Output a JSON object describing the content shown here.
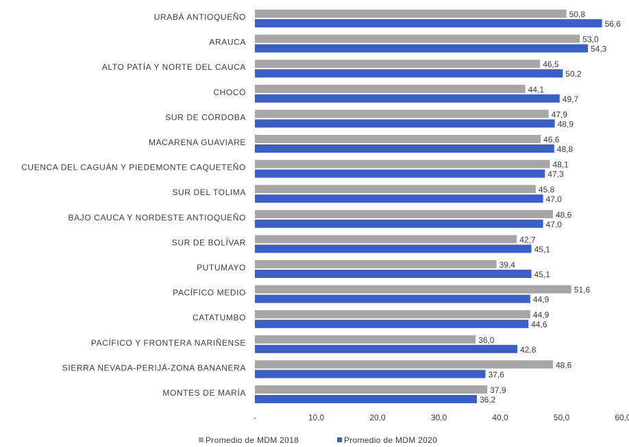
{
  "chart_data": {
    "type": "bar",
    "orientation": "horizontal",
    "categories": [
      "URABÁ ANTIOQUEÑO",
      "ARAUCA",
      "ALTO PATÍA Y NORTE DEL CAUCA",
      "CHOCÓ",
      "SUR DE CÓRDOBA",
      "MACARENA GUAVIARE",
      "CUENCA DEL CAGUÁN Y PIEDEMONTE CAQUETEÑO",
      "SUR DEL TOLIMA",
      "BAJO CAUCA Y NORDESTE ANTIOQUEÑO",
      "SUR DE BOLÍVAR",
      "PUTUMAYO",
      "PACÍFICO MEDIO",
      "CATATUMBO",
      "PACÍFICO Y FRONTERA NARIÑENSE",
      "SIERRA NEVADA-PERIJÁ-ZONA BANANERA",
      "MONTES DE MARÍA"
    ],
    "series": [
      {
        "name": "Promedio de MDM 2018",
        "color": "#a6a6a6",
        "values": [
          50.8,
          53.0,
          46.5,
          44.1,
          47.9,
          46.6,
          48.1,
          45.8,
          48.6,
          42.7,
          39.4,
          51.6,
          44.9,
          36.0,
          48.6,
          37.9
        ],
        "labels": [
          "50,8",
          "53,0",
          "46,5",
          "44,1",
          "47,9",
          "46,6",
          "48,1",
          "45,8",
          "48,6",
          "42,7",
          "39,4",
          "51,6",
          "44,9",
          "36,0",
          "48,6",
          "37,9"
        ]
      },
      {
        "name": "Promedio de MDM 2020",
        "color": "#3a5fc8",
        "values": [
          56.6,
          54.3,
          50.2,
          49.7,
          48.9,
          48.8,
          47.3,
          47.0,
          47.0,
          45.1,
          45.1,
          44.9,
          44.6,
          42.8,
          37.6,
          36.2
        ],
        "labels": [
          "56,6",
          "54,3",
          "50,2",
          "49,7",
          "48,9",
          "48,8",
          "47,3",
          "47,0",
          "47,0",
          "45,1",
          "45,1",
          "44,9",
          "44,6",
          "42,8",
          "37,6",
          "36,2"
        ]
      }
    ],
    "xlim": [
      0,
      60
    ],
    "x_ticks": [
      0,
      10,
      20,
      30,
      40,
      50,
      60
    ],
    "x_tick_labels": [
      "-",
      "10,0",
      "20,0",
      "30,0",
      "40,0",
      "50,0",
      "60,0"
    ],
    "grid": false,
    "legend_position": "bottom",
    "title": "",
    "xlabel": "",
    "ylabel": ""
  }
}
